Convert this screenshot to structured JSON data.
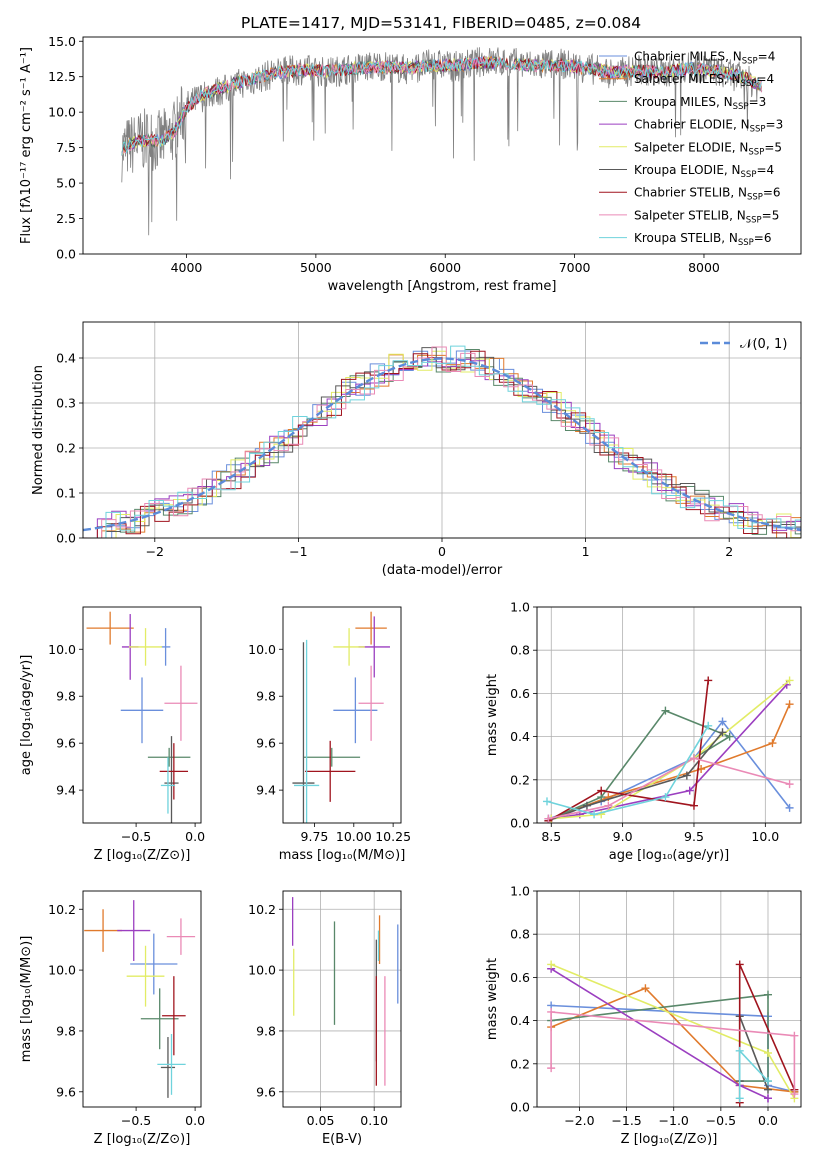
{
  "colors": [
    "#6a8fdc",
    "#e07a2c",
    "#59886a",
    "#9b3fc0",
    "#e2ec66",
    "#595959",
    "#a0141e",
    "#ea8ab6",
    "#6fd3dc"
  ],
  "chart_data": [
    {
      "id": "spectrum",
      "type": "line",
      "title": "PLATE=1417, MJD=53141, FIBERID=0485, z=0.084",
      "xlabel": "wavelength [Angstrom, rest frame]",
      "ylabel": "Flux [fλ10⁻¹⁷ erg cm⁻² s⁻¹ A⁻¹]",
      "xlim": [
        3200,
        8750
      ],
      "ylim": [
        0,
        15.3
      ],
      "xticks": [
        4000,
        5000,
        6000,
        7000,
        8000
      ],
      "yticks": [
        "0.0",
        "2.5",
        "5.0",
        "7.5",
        "10.0",
        "12.5",
        "15.0"
      ],
      "legend_position": "right",
      "legend": [
        {
          "label": "Chabrier MILES, N",
          "sub": "SSP",
          "val": "=4"
        },
        {
          "label": "Salpeter MILES, N",
          "sub": "SSP",
          "val": "=4"
        },
        {
          "label": "Kroupa MILES, N",
          "sub": "SSP",
          "val": "=3"
        },
        {
          "label": "Chabrier ELODIE, N",
          "sub": "SSP",
          "val": "=3"
        },
        {
          "label": "Salpeter ELODIE, N",
          "sub": "SSP",
          "val": "=5"
        },
        {
          "label": "Kroupa ELODIE, N",
          "sub": "SSP",
          "val": "=4"
        },
        {
          "label": "Chabrier STELIB, N",
          "sub": "SSP",
          "val": "=6"
        },
        {
          "label": "Salpeter STELIB, N",
          "sub": "SSP",
          "val": "=5"
        },
        {
          "label": "Kroupa STELIB, N",
          "sub": "SSP",
          "val": "=6"
        }
      ],
      "observed_flux": {
        "color": "#808080",
        "wavelength": [
          3500,
          3600,
          3700,
          3800,
          3900,
          4000,
          4100,
          4200,
          4300,
          4400,
          4500,
          4700,
          4900,
          5100,
          5300,
          5500,
          5700,
          5900,
          6100,
          6300,
          6500,
          6700,
          6900,
          7100,
          7300,
          7500,
          7700,
          7900,
          8100,
          8300,
          8450
        ],
        "flux": [
          7.3,
          7.8,
          8.1,
          7.9,
          8.6,
          10.4,
          11.0,
          11.4,
          11.6,
          12.0,
          12.2,
          12.8,
          13.0,
          12.8,
          13.1,
          13.3,
          13.0,
          13.4,
          13.2,
          13.6,
          13.5,
          13.3,
          13.4,
          13.1,
          12.7,
          13.0,
          12.8,
          13.2,
          12.9,
          12.4,
          11.7
        ]
      },
      "model_flux": {
        "wavelength": [
          3500,
          3600,
          3700,
          3800,
          3900,
          4000,
          4100,
          4200,
          4300,
          4400,
          4500,
          4700,
          4900,
          5100,
          5300,
          5500,
          5700,
          5900,
          6100,
          6300,
          6500,
          6700,
          6900,
          7100,
          7300,
          7500,
          7700,
          7900,
          8100,
          8300,
          8450
        ],
        "flux": [
          7.4,
          7.9,
          8.0,
          8.0,
          8.5,
          10.3,
          11.1,
          11.5,
          11.8,
          12.1,
          12.3,
          12.8,
          13.0,
          12.9,
          13.1,
          13.2,
          13.1,
          13.3,
          13.3,
          13.5,
          13.4,
          13.3,
          13.3,
          13.1,
          12.8,
          12.9,
          12.8,
          13.1,
          12.9,
          12.5,
          11.8
        ]
      }
    },
    {
      "id": "residual-histogram",
      "type": "bar",
      "xlabel": "(data-model)/error",
      "ylabel": "Normed distribution",
      "xlim": [
        -2.5,
        2.5
      ],
      "ylim": [
        0,
        0.48
      ],
      "xticks": [
        "−2",
        "−1",
        "0",
        "1",
        "2"
      ],
      "yticks": [
        "0.0",
        "0.1",
        "0.2",
        "0.3",
        "0.4"
      ],
      "legend_label": "𝒩(0, 1)",
      "reference_color": "#5b8bd9",
      "bin_width": 0.1
    },
    {
      "id": "age-vs-z",
      "type": "scatter",
      "xlabel": "Z [log₁₀(Z/Z⊙)]",
      "ylabel": "age  [log₁₀(age/yr)]",
      "xlim": [
        -0.95,
        0.05
      ],
      "ylim": [
        9.26,
        10.18
      ],
      "xticks": [
        "−0.5",
        "0.0"
      ],
      "xtick_vals": [
        -0.5,
        0.0
      ],
      "yticks": [
        "9.4",
        "9.6",
        "9.8",
        "10.0"
      ],
      "ytick_vals": [
        9.4,
        9.6,
        9.8,
        10.0
      ],
      "grid": false,
      "points": [
        {
          "x": -0.25,
          "y": 10.01,
          "xerr": 0.04,
          "yerr": 0.08
        },
        {
          "x": -0.72,
          "y": 10.09,
          "xerr": 0.2,
          "yerr": 0.07
        },
        {
          "x": -0.22,
          "y": 9.54,
          "xerr": 0.18,
          "yerr": 0.04
        },
        {
          "x": -0.55,
          "y": 10.01,
          "xerr": 0.07,
          "yerr": 0.14
        },
        {
          "x": -0.42,
          "y": 10.01,
          "xerr": 0.14,
          "yerr": 0.08
        },
        {
          "x": -0.2,
          "y": 9.43,
          "xerr": 0.06,
          "yerr": 0.2
        },
        {
          "x": -0.18,
          "y": 9.48,
          "xerr": 0.12,
          "yerr": 0.12
        },
        {
          "x": -0.12,
          "y": 9.77,
          "xerr": 0.14,
          "yerr": 0.16
        },
        {
          "x": -0.23,
          "y": 9.42,
          "xerr": 0.06,
          "yerr": 0.12
        },
        {
          "x": -0.45,
          "y": 9.74,
          "xerr": 0.18,
          "yerr": 0.14
        }
      ]
    },
    {
      "id": "age-vs-mass",
      "type": "scatter",
      "xlabel": "mass [log₁₀(M/M⊙)]",
      "ylabel": "",
      "xlim": [
        9.55,
        10.3
      ],
      "ylim": [
        9.26,
        10.18
      ],
      "xticks": [
        "9.75",
        "10.00",
        "10.25"
      ],
      "xtick_vals": [
        9.75,
        10.0,
        10.25
      ],
      "yticks": [
        "9.4",
        "9.6",
        "9.8",
        "10.0"
      ],
      "ytick_vals": [
        9.4,
        9.6,
        9.8,
        10.0
      ],
      "grid": false,
      "points": [
        {
          "x": 10.01,
          "y": 9.74,
          "xerr": 0.14,
          "yerr": 0.14
        },
        {
          "x": 10.11,
          "y": 10.09,
          "xerr": 0.1,
          "yerr": 0.07
        },
        {
          "x": 9.86,
          "y": 9.54,
          "xerr": 0.18,
          "yerr": 0.04
        },
        {
          "x": 10.13,
          "y": 10.01,
          "xerr": 0.1,
          "yerr": 0.13
        },
        {
          "x": 9.97,
          "y": 10.01,
          "xerr": 0.1,
          "yerr": 0.08
        },
        {
          "x": 9.68,
          "y": 9.43,
          "xerr": 0.07,
          "yerr": 0.6
        },
        {
          "x": 9.85,
          "y": 9.48,
          "xerr": 0.16,
          "yerr": 0.13
        },
        {
          "x": 10.11,
          "y": 9.77,
          "xerr": 0.08,
          "yerr": 0.16
        },
        {
          "x": 9.7,
          "y": 9.42,
          "xerr": 0.08,
          "yerr": 0.62
        }
      ]
    },
    {
      "id": "massweight-vs-age",
      "type": "line",
      "xlabel": "age  [log₁₀(age/yr)]",
      "ylabel": "mass weight",
      "xlim": [
        8.4,
        10.25
      ],
      "ylim": [
        0,
        1.0
      ],
      "xticks": [
        "8.5",
        "9.0",
        "9.5",
        "10.0"
      ],
      "xtick_vals": [
        8.5,
        9.0,
        9.5,
        10.0
      ],
      "yticks": [
        "0.0",
        "0.2",
        "0.4",
        "0.6",
        "0.8",
        "1.0"
      ],
      "ytick_vals": [
        0,
        0.2,
        0.4,
        0.6,
        0.8,
        1.0
      ],
      "grid": true,
      "series": [
        {
          "x": [
            8.48,
            8.85,
            9.5,
            9.7,
            10.17
          ],
          "y": [
            0.02,
            0.1,
            0.3,
            0.47,
            0.07
          ]
        },
        {
          "x": [
            8.5,
            8.9,
            9.55,
            10.05,
            10.17
          ],
          "y": [
            0.02,
            0.12,
            0.25,
            0.37,
            0.55
          ]
        },
        {
          "x": [
            8.5,
            8.85,
            9.3,
            9.75,
            9.5
          ],
          "y": [
            0.02,
            0.12,
            0.52,
            0.4,
            0.3
          ]
        },
        {
          "x": [
            8.5,
            8.7,
            9.47,
            10.15
          ],
          "y": [
            0.02,
            0.04,
            0.15,
            0.64
          ]
        },
        {
          "x": [
            8.5,
            8.85,
            9.5,
            10.17
          ],
          "y": [
            0.02,
            0.04,
            0.3,
            0.66
          ]
        },
        {
          "x": [
            8.48,
            8.75,
            9.45,
            9.7
          ],
          "y": [
            0.01,
            0.08,
            0.22,
            0.42
          ]
        },
        {
          "x": [
            8.48,
            8.85,
            9.5,
            9.6
          ],
          "y": [
            0.01,
            0.15,
            0.08,
            0.66
          ]
        },
        {
          "x": [
            8.48,
            8.9,
            9.5,
            10.17
          ],
          "y": [
            0.02,
            0.08,
            0.3,
            0.18
          ]
        },
        {
          "x": [
            8.47,
            8.8,
            9.3,
            9.6
          ],
          "y": [
            0.1,
            0.04,
            0.12,
            0.45
          ]
        }
      ]
    },
    {
      "id": "mass-vs-z",
      "type": "scatter",
      "xlabel": "Z [log₁₀(Z/Z⊙)]",
      "ylabel": "mass [log₁₀(M/M⊙)]",
      "xlim": [
        -0.95,
        0.05
      ],
      "ylim": [
        9.55,
        10.26
      ],
      "xticks": [
        "−0.5",
        "0.0"
      ],
      "xtick_vals": [
        -0.5,
        0.0
      ],
      "yticks": [
        "9.6",
        "9.8",
        "10.0",
        "10.2"
      ],
      "ytick_vals": [
        9.6,
        9.8,
        10.0,
        10.2
      ],
      "grid": false,
      "points": [
        {
          "x": -0.35,
          "y": 10.02,
          "xerr": 0.2,
          "yerr": 0.1
        },
        {
          "x": -0.78,
          "y": 10.13,
          "xerr": 0.16,
          "yerr": 0.07
        },
        {
          "x": -0.3,
          "y": 9.84,
          "xerr": 0.16,
          "yerr": 0.1
        },
        {
          "x": -0.52,
          "y": 10.13,
          "xerr": 0.14,
          "yerr": 0.1
        },
        {
          "x": -0.42,
          "y": 9.98,
          "xerr": 0.16,
          "yerr": 0.1
        },
        {
          "x": -0.23,
          "y": 9.68,
          "xerr": 0.06,
          "yerr": 0.1
        },
        {
          "x": -0.18,
          "y": 9.85,
          "xerr": 0.1,
          "yerr": 0.13
        },
        {
          "x": -0.12,
          "y": 10.11,
          "xerr": 0.12,
          "yerr": 0.06
        },
        {
          "x": -0.2,
          "y": 9.69,
          "xerr": 0.12,
          "yerr": 0.1
        }
      ]
    },
    {
      "id": "mass-vs-ebv",
      "type": "scatter",
      "xlabel": "E(B-V)",
      "ylabel": "",
      "xlim": [
        0.015,
        0.125
      ],
      "ylim": [
        9.55,
        10.26
      ],
      "xticks": [
        "0.05",
        "0.10"
      ],
      "xtick_vals": [
        0.05,
        0.1
      ],
      "yticks": [
        "9.6",
        "9.8",
        "10.0",
        "10.2"
      ],
      "ytick_vals": [
        9.6,
        9.8,
        10.0,
        10.2
      ],
      "grid": true,
      "points": [
        {
          "x": 0.122,
          "y": 10.02,
          "yerr": 0.13
        },
        {
          "x": 0.105,
          "y": 10.1,
          "yerr": 0.08
        },
        {
          "x": 0.063,
          "y": 9.99,
          "yerr": 0.17
        },
        {
          "x": 0.024,
          "y": 10.16,
          "yerr": 0.08
        },
        {
          "x": 0.025,
          "y": 9.96,
          "yerr": 0.11
        },
        {
          "x": 0.102,
          "y": 9.9,
          "yerr": 0.2
        },
        {
          "x": 0.102,
          "y": 9.8,
          "yerr": 0.18
        },
        {
          "x": 0.11,
          "y": 9.8,
          "yerr": 0.18
        },
        {
          "x": 0.104,
          "y": 10.08,
          "yerr": 0.05
        }
      ]
    },
    {
      "id": "massweight-vs-z",
      "type": "line",
      "xlabel": "Z [log₁₀(Z/Z⊙)]",
      "ylabel": "mass weight",
      "xlim": [
        -2.45,
        0.35
      ],
      "ylim": [
        0,
        1.0
      ],
      "xticks": [
        "−2.0",
        "−1.5",
        "−1.0",
        "−0.5",
        "0.0"
      ],
      "xtick_vals": [
        -2.0,
        -1.5,
        -1.0,
        -0.5,
        0.0
      ],
      "yticks": [
        "0.0",
        "0.2",
        "0.4",
        "0.6",
        "0.8",
        "1.0"
      ],
      "ytick_vals": [
        0,
        0.2,
        0.4,
        0.6,
        0.8,
        1.0
      ],
      "grid": true,
      "series": [
        {
          "x": [
            -2.3,
            0.0,
            0.0,
            0.28
          ],
          "y": [
            0.47,
            0.42,
            0.1,
            0.07
          ]
        },
        {
          "x": [
            -2.3,
            -1.3,
            -0.3,
            0.28
          ],
          "y": [
            0.37,
            0.55,
            0.1,
            0.07
          ]
        },
        {
          "x": [
            -2.3,
            0.0,
            0.0,
            -0.3
          ],
          "y": [
            0.4,
            0.52,
            0.12,
            0.12
          ]
        },
        {
          "x": [
            -2.3,
            -0.3,
            0.0,
            0.0
          ],
          "y": [
            0.64,
            0.1,
            0.04,
            0.04
          ]
        },
        {
          "x": [
            -2.3,
            0.0,
            0.28
          ],
          "y": [
            0.66,
            0.25,
            0.04
          ]
        },
        {
          "x": [
            -0.3,
            -0.3,
            0.0
          ],
          "y": [
            0.12,
            0.42,
            0.08
          ]
        },
        {
          "x": [
            -0.3,
            -0.3,
            0.28
          ],
          "y": [
            0.02,
            0.66,
            0.08
          ]
        },
        {
          "x": [
            -2.3,
            -2.3,
            0.28,
            0.28
          ],
          "y": [
            0.18,
            0.44,
            0.33,
            0.06
          ]
        },
        {
          "x": [
            -0.3,
            -0.3,
            0.0
          ],
          "y": [
            0.04,
            0.26,
            0.12
          ]
        }
      ]
    }
  ]
}
